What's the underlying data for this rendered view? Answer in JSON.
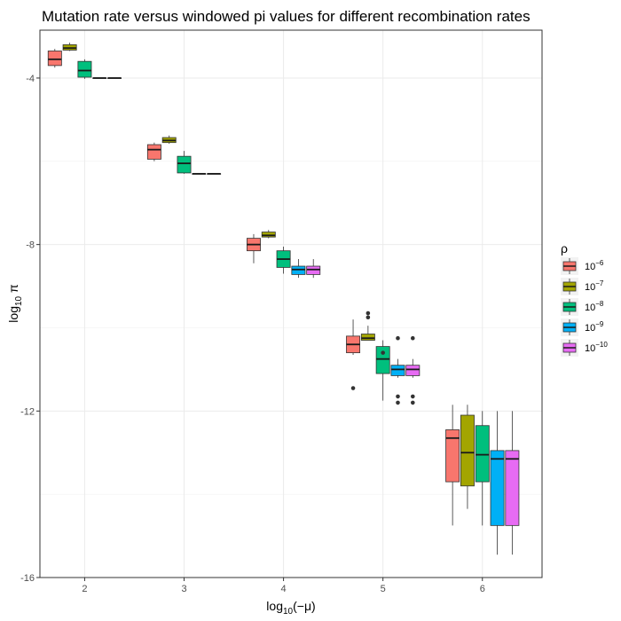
{
  "chart_data": {
    "type": "boxplot",
    "title": "Mutation rate versus windowed pi values for different recombination rates",
    "xlabel": {
      "base": "log",
      "sub": "10",
      "rest": "(−μ)"
    },
    "ylabel": {
      "base": "log",
      "sub": "10",
      "rest": " π"
    },
    "x_ticks": [
      "2",
      "3",
      "4",
      "5",
      "6"
    ],
    "y_ticks": [
      -4,
      -8,
      -12,
      -16
    ],
    "xlim": [
      1.55,
      6.6
    ],
    "ylim": [
      -16,
      -2.85
    ],
    "grid": true,
    "legend": {
      "title": "ρ",
      "placement": "right",
      "entries": [
        {
          "base": "10",
          "exp": "−6",
          "color": "#F8766D"
        },
        {
          "base": "10",
          "exp": "−7",
          "color": "#A3A500"
        },
        {
          "base": "10",
          "exp": "−8",
          "color": "#00BF7D"
        },
        {
          "base": "10",
          "exp": "−9",
          "color": "#00B0F6"
        },
        {
          "base": "10",
          "exp": "−10",
          "color": "#E76BF3"
        }
      ]
    },
    "groups": [
      {
        "x": 2,
        "series": [
          {
            "lo": -3.75,
            "q1": -3.7,
            "med": -3.55,
            "q3": -3.35,
            "hi": -3.3,
            "outliers": []
          },
          {
            "lo": -3.35,
            "q1": -3.33,
            "med": -3.28,
            "q3": -3.2,
            "hi": -3.15,
            "outliers": []
          },
          {
            "lo": -4.02,
            "q1": -3.98,
            "med": -3.82,
            "q3": -3.6,
            "hi": -3.55,
            "outliers": []
          },
          {
            "lo": -4.0,
            "q1": -4.0,
            "med": -4.0,
            "q3": -4.0,
            "hi": -4.0,
            "outliers": []
          },
          {
            "lo": -4.0,
            "q1": -4.0,
            "med": -4.0,
            "q3": -4.0,
            "hi": -4.0,
            "outliers": []
          }
        ]
      },
      {
        "x": 3,
        "series": [
          {
            "lo": -6.0,
            "q1": -5.95,
            "med": -5.72,
            "q3": -5.6,
            "hi": -5.55,
            "outliers": []
          },
          {
            "lo": -5.58,
            "q1": -5.55,
            "med": -5.5,
            "q3": -5.43,
            "hi": -5.38,
            "outliers": []
          },
          {
            "lo": -6.3,
            "q1": -6.28,
            "med": -6.05,
            "q3": -5.88,
            "hi": -5.75,
            "outliers": []
          },
          {
            "lo": -6.3,
            "q1": -6.3,
            "med": -6.3,
            "q3": -6.3,
            "hi": -6.3,
            "outliers": []
          },
          {
            "lo": -6.3,
            "q1": -6.3,
            "med": -6.3,
            "q3": -6.3,
            "hi": -6.3,
            "outliers": []
          }
        ]
      },
      {
        "x": 4,
        "series": [
          {
            "lo": -8.45,
            "q1": -8.15,
            "med": -8.0,
            "q3": -7.85,
            "hi": -7.75,
            "outliers": []
          },
          {
            "lo": -7.85,
            "q1": -7.82,
            "med": -7.78,
            "q3": -7.7,
            "hi": -7.65,
            "outliers": []
          },
          {
            "lo": -8.7,
            "q1": -8.55,
            "med": -8.35,
            "q3": -8.15,
            "hi": -8.05,
            "outliers": []
          },
          {
            "lo": -8.8,
            "q1": -8.72,
            "med": -8.6,
            "q3": -8.52,
            "hi": -8.35,
            "outliers": []
          },
          {
            "lo": -8.8,
            "q1": -8.72,
            "med": -8.6,
            "q3": -8.52,
            "hi": -8.35,
            "outliers": []
          }
        ]
      },
      {
        "x": 5,
        "series": [
          {
            "lo": -10.65,
            "q1": -10.6,
            "med": -10.4,
            "q3": -10.2,
            "hi": -9.8,
            "outliers": [
              -11.45
            ]
          },
          {
            "lo": -10.3,
            "q1": -10.3,
            "med": -10.25,
            "q3": -10.15,
            "hi": -9.95,
            "outliers": [
              -9.65,
              -9.75
            ]
          },
          {
            "lo": -11.75,
            "q1": -11.1,
            "med": -10.75,
            "q3": -10.45,
            "hi": -10.3,
            "outliers": [
              -10.6
            ]
          },
          {
            "lo": -11.2,
            "q1": -11.15,
            "med": -11.0,
            "q3": -10.9,
            "hi": -10.75,
            "outliers": [
              -10.25,
              -11.65,
              -11.8
            ]
          },
          {
            "lo": -11.2,
            "q1": -11.15,
            "med": -11.0,
            "q3": -10.9,
            "hi": -10.75,
            "outliers": [
              -10.25,
              -11.65,
              -11.8
            ]
          }
        ]
      },
      {
        "x": 6,
        "series": [
          {
            "lo": -14.75,
            "q1": -13.7,
            "med": -12.65,
            "q3": -12.45,
            "hi": -11.85,
            "outliers": []
          },
          {
            "lo": -14.35,
            "q1": -13.8,
            "med": -13.0,
            "q3": -12.1,
            "hi": -11.85,
            "outliers": []
          },
          {
            "lo": -14.75,
            "q1": -13.7,
            "med": -13.05,
            "q3": -12.35,
            "hi": -12.0,
            "outliers": []
          },
          {
            "lo": -15.45,
            "q1": -14.75,
            "med": -13.15,
            "q3": -12.95,
            "hi": -12.0,
            "outliers": []
          },
          {
            "lo": -15.45,
            "q1": -14.75,
            "med": -13.15,
            "q3": -12.95,
            "hi": -12.0,
            "outliers": []
          }
        ]
      }
    ]
  }
}
